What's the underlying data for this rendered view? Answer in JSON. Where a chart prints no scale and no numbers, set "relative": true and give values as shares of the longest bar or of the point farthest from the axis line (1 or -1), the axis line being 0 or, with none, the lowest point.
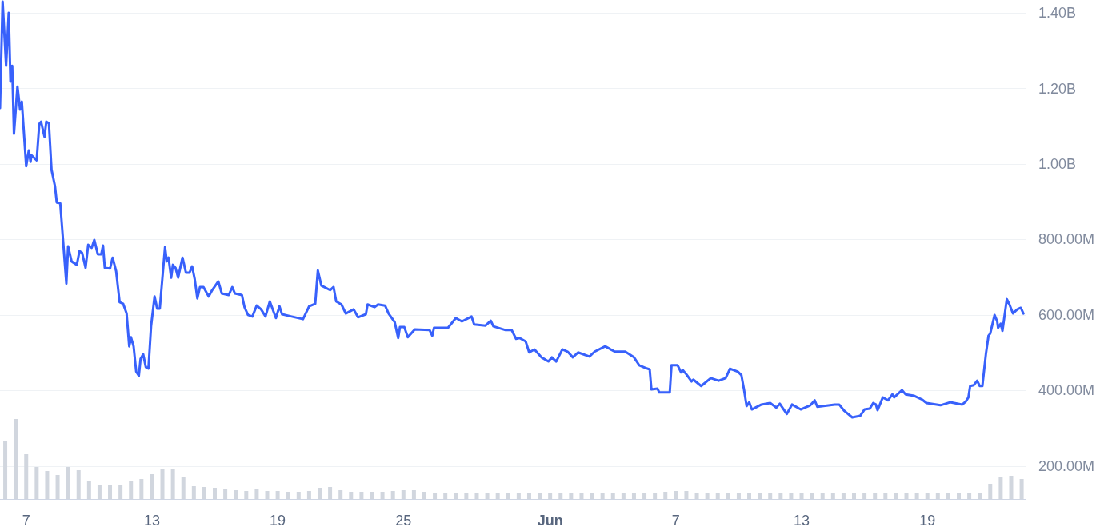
{
  "chart_data": [
    {
      "type": "line",
      "color": "#3861fb",
      "x": [
        "--05-05T18:00",
        "--05-05T21:00",
        "--05-06T01:00",
        "--05-06T04:00",
        "--05-06T06:00",
        "--05-06T08:00",
        "--05-06T10:00",
        "--05-06T14:00",
        "--05-06T17:00",
        "--05-06T19:00",
        "--05-07T00:00",
        "--05-07T03:00",
        "--05-07T05:00",
        "--05-07T06:00",
        "--05-07T12:00",
        "--05-07T15:00",
        "--05-07T17:00",
        "--05-07T21:00",
        "--05-07T23:00",
        "--05-08T02:00",
        "--05-08T05:00",
        "--05-08T09:00",
        "--05-08T11:00",
        "--05-08T15:00",
        "--05-08T22:00",
        "--05-09T00:00",
        "--05-09T04:00",
        "--05-09T10:00",
        "--05-09T13:00",
        "--05-09T16:00",
        "--05-09T20:00",
        "--05-09T23:00",
        "--05-10T03:00",
        "--05-10T06:00",
        "--05-10T10:00",
        "--05-10T14:00",
        "--05-10T16:00",
        "--05-10T18:00",
        "--05-11T00:00",
        "--05-11T03:00",
        "--05-11T07:00",
        "--05-11T11:00",
        "--05-11T15:00",
        "--05-11T19:00",
        "--05-11T22:00",
        "--05-12T00:00",
        "--05-12T03:00",
        "--05-12T06:00",
        "--05-12T09:00",
        "--05-12T11:00",
        "--05-12T14:00",
        "--05-12T17:00",
        "--05-12T20:00",
        "--05-12T23:00",
        "--05-13T03:00",
        "--05-13T06:00",
        "--05-13T09:00",
        "--05-13T15:00",
        "--05-13T17:00",
        "--05-13T19:00",
        "--05-13T22:00",
        "--05-14T00:00",
        "--05-14T03:00",
        "--05-14T06:00",
        "--05-14T11:00",
        "--05-14T15:00",
        "--05-14T19:00",
        "--05-14T22:00",
        "--05-15T01:00",
        "--05-15T04:00",
        "--05-15T07:00",
        "--05-15T11:00",
        "--05-15T17:00",
        "--05-15T21:00",
        "--05-16T04:00",
        "--05-16T08:00",
        "--05-16T16:00",
        "--05-16T20:00",
        "--05-16T23:00",
        "--05-17T07:00",
        "--05-17T10:00",
        "--05-17T14:00",
        "--05-17T19:00",
        "--05-18T00:00",
        "--05-18T05:00",
        "--05-18T10:00",
        "--05-18T15:00",
        "--05-18T18:00",
        "--05-18T22:00",
        "--05-19T02:00",
        "--05-19T05:00",
        "--05-19T16:00",
        "--05-20T05:00",
        "--05-20T12:00",
        "--05-20T19:00",
        "--05-20T22:00",
        "--05-21T02:00",
        "--05-21T12:00",
        "--05-21T16:00",
        "--05-21T19:00",
        "--05-22T01:00",
        "--05-22T06:00",
        "--05-22T15:00",
        "--05-22T20:00",
        "--05-23T05:00",
        "--05-23T07:00",
        "--05-23T15:00",
        "--05-23T19:00",
        "--05-24T03:00",
        "--05-24T07:00",
        "--05-24T14:00",
        "--05-24T18:00",
        "--05-24T20:00",
        "--05-25T01:00",
        "--05-25T05:00",
        "--05-25T13:00",
        "--05-26T06:00",
        "--05-26T09:00",
        "--05-26T11:00",
        "--05-27T03:00",
        "--05-27T12:00",
        "--05-27T19:00",
        "--05-28T06:00",
        "--05-28T09:00",
        "--05-28T22:00",
        "--05-29T04:00",
        "--05-29T07:00",
        "--05-29T21:00",
        "--05-30T04:00",
        "--05-30T09:00",
        "--05-30T13:00",
        "--05-30T20:00",
        "--05-31T00:00",
        "--05-31T06:00",
        "--05-31T14:00",
        "--05-31T22:00",
        "--06-01T02:00",
        "--06-01T07:00",
        "--06-01T14:00",
        "--06-01T20:00",
        "--06-02T02:00",
        "--06-02T08:00",
        "--06-02T21:00",
        "--06-03T03:00",
        "--06-03T15:00",
        "--06-04T02:00",
        "--06-04T14:00",
        "--06-05T00:00",
        "--06-05T06:00",
        "--06-05T13:00",
        "--06-05T18:00",
        "--06-05T20:00",
        "--06-06T03:00",
        "--06-06T05:00",
        "--06-06T17:00",
        "--06-06T19:00",
        "--06-07T02:00",
        "--06-07T06:00",
        "--06-07T08:00",
        "--06-07T12:00",
        "--06-07T18:00",
        "--06-07T20:00",
        "--06-08T05:00",
        "--06-08T16:00",
        "--06-09T01:00",
        "--06-09T09:00",
        "--06-09T14:00",
        "--06-09T23:00",
        "--06-10T03:00",
        "--06-10T06:00",
        "--06-10T09:00",
        "--06-10T12:00",
        "--06-10T15:00",
        "--06-11T02:00",
        "--06-11T12:00",
        "--06-11T19:00",
        "--06-11T23:00",
        "--06-12T07:00",
        "--06-12T13:00",
        "--06-12T23:00",
        "--06-13T10:00",
        "--06-13T15:00",
        "--06-13T18:00",
        "--06-14T14:00",
        "--06-14T19:00",
        "--06-15T01:00",
        "--06-15T10:00",
        "--06-15T19:00",
        "--06-16T00:00",
        "--06-16T06:00",
        "--06-16T10:00",
        "--06-16T13:00",
        "--06-16T15:00",
        "--06-16T21:00",
        "--06-17T03:00",
        "--06-17T08:00",
        "--06-17T10:00",
        "--06-17T19:00",
        "--06-17T23:00",
        "--06-18T09:00",
        "--06-18T18:00",
        "--06-18T23:00",
        "--06-19T15:00",
        "--06-20T02:00",
        "--06-20T16:00",
        "--06-20T20:00",
        "--06-20T23:00",
        "--06-21T01:00",
        "--06-21T05:00",
        "--06-21T09:00",
        "--06-21T12:00",
        "--06-21T15:00",
        "--06-21T19:00",
        "--06-21T22:00",
        "--06-22T00:00",
        "--06-22T05:00",
        "--06-22T08:00",
        "--06-22T09:00",
        "--06-22T12:00",
        "--06-22T14:00",
        "--06-22T19:00",
        "--06-22T22:00",
        "--06-23T02:00",
        "--06-23T07:00",
        "--06-23T11:00",
        "--06-23T14:00"
      ],
      "values": [
        1148000000,
        1430000000,
        1260000000,
        1400000000,
        1218000000,
        1260000000,
        1080000000,
        1205000000,
        1144000000,
        1165000000,
        994000000,
        1036000000,
        1006000000,
        1023000000,
        1010000000,
        1106000000,
        1112000000,
        1072000000,
        1112000000,
        1108000000,
        985000000,
        941000000,
        898000000,
        896000000,
        683000000,
        782000000,
        742000000,
        733000000,
        769000000,
        765000000,
        725000000,
        786000000,
        778000000,
        799000000,
        761000000,
        761000000,
        784000000,
        725000000,
        723000000,
        752000000,
        716000000,
        634000000,
        630000000,
        604000000,
        517000000,
        541000000,
        517000000,
        450000000,
        439000000,
        484000000,
        496000000,
        462000000,
        458000000,
        570000000,
        649000000,
        617000000,
        617000000,
        780000000,
        742000000,
        752000000,
        699000000,
        733000000,
        725000000,
        699000000,
        752000000,
        712000000,
        712000000,
        729000000,
        695000000,
        644000000,
        674000000,
        674000000,
        649000000,
        666000000,
        689000000,
        657000000,
        653000000,
        674000000,
        657000000,
        653000000,
        621000000,
        600000000,
        596000000,
        625000000,
        615000000,
        596000000,
        636000000,
        617000000,
        592000000,
        623000000,
        602000000,
        596000000,
        589000000,
        623000000,
        630000000,
        718000000,
        678000000,
        666000000,
        674000000,
        636000000,
        628000000,
        604000000,
        615000000,
        594000000,
        602000000,
        628000000,
        621000000,
        628000000,
        625000000,
        604000000,
        581000000,
        539000000,
        568000000,
        568000000,
        541000000,
        562000000,
        560000000,
        545000000,
        566000000,
        566000000,
        592000000,
        583000000,
        596000000,
        575000000,
        572000000,
        585000000,
        570000000,
        560000000,
        560000000,
        537000000,
        539000000,
        530000000,
        501000000,
        509000000,
        488000000,
        477000000,
        488000000,
        477000000,
        509000000,
        503000000,
        488000000,
        501000000,
        490000000,
        503000000,
        517000000,
        503000000,
        503000000,
        488000000,
        467000000,
        460000000,
        456000000,
        403000000,
        405000000,
        395000000,
        395000000,
        467000000,
        467000000,
        448000000,
        454000000,
        443000000,
        424000000,
        429000000,
        412000000,
        433000000,
        426000000,
        433000000,
        458000000,
        450000000,
        441000000,
        403000000,
        359000000,
        369000000,
        350000000,
        363000000,
        367000000,
        355000000,
        365000000,
        338000000,
        363000000,
        350000000,
        361000000,
        374000000,
        357000000,
        363000000,
        363000000,
        346000000,
        329000000,
        333000000,
        350000000,
        352000000,
        367000000,
        363000000,
        348000000,
        382000000,
        374000000,
        390000000,
        382000000,
        401000000,
        390000000,
        386000000,
        376000000,
        367000000,
        361000000,
        369000000,
        363000000,
        371000000,
        382000000,
        412000000,
        414000000,
        426000000,
        412000000,
        412000000,
        496000000,
        545000000,
        551000000,
        600000000,
        583000000,
        566000000,
        577000000,
        558000000,
        642000000,
        628000000,
        604000000,
        615000000,
        619000000,
        604000000
      ],
      "xlim": [
        "--05-05T18:00",
        "--06-23T16:30"
      ],
      "xticks": [
        {
          "value": "--05-07",
          "label": "7"
        },
        {
          "value": "--05-13",
          "label": "13"
        },
        {
          "value": "--05-19",
          "label": "19"
        },
        {
          "value": "--05-25",
          "label": "25"
        },
        {
          "value": "--06-01",
          "label": "Jun"
        },
        {
          "value": "--06-07",
          "label": "7"
        },
        {
          "value": "--06-13",
          "label": "13"
        },
        {
          "value": "--06-19",
          "label": "19"
        }
      ],
      "ylim": [
        113000000,
        1434000000
      ],
      "yticks": [
        {
          "value": 200000000,
          "label": "200.00M"
        },
        {
          "value": 400000000,
          "label": "400.00M"
        },
        {
          "value": 600000000,
          "label": "600.00M"
        },
        {
          "value": 800000000,
          "label": "800.00M"
        },
        {
          "value": 1000000000,
          "label": "1.00B"
        },
        {
          "value": 1200000000,
          "label": "1.20B"
        },
        {
          "value": 1400000000,
          "label": "1.40B"
        }
      ],
      "grid": "y"
    },
    {
      "type": "bar",
      "relative": true,
      "color": "#d1d6de",
      "tick_labels": false,
      "x": [
        "--05-06T00:00",
        "--05-06T12:00",
        "--05-07T00:00",
        "--05-07T12:00",
        "--05-08T00:00",
        "--05-08T12:00",
        "--05-09T00:00",
        "--05-09T12:00",
        "--05-10T00:00",
        "--05-10T12:00",
        "--05-11T00:00",
        "--05-11T12:00",
        "--05-12T00:00",
        "--05-12T12:00",
        "--05-13T00:00",
        "--05-13T12:00",
        "--05-14T00:00",
        "--05-14T12:00",
        "--05-15T00:00",
        "--05-15T12:00",
        "--05-16T00:00",
        "--05-16T12:00",
        "--05-17T00:00",
        "--05-17T12:00",
        "--05-18T00:00",
        "--05-18T12:00",
        "--05-19T00:00",
        "--05-19T12:00",
        "--05-20T00:00",
        "--05-20T12:00",
        "--05-21T00:00",
        "--05-21T12:00",
        "--05-22T00:00",
        "--05-22T12:00",
        "--05-23T00:00",
        "--05-23T12:00",
        "--05-24T00:00",
        "--05-24T12:00",
        "--05-25T00:00",
        "--05-25T12:00",
        "--05-26T00:00",
        "--05-26T12:00",
        "--05-27T00:00",
        "--05-27T12:00",
        "--05-28T00:00",
        "--05-28T12:00",
        "--05-29T00:00",
        "--05-29T12:00",
        "--05-30T00:00",
        "--05-30T12:00",
        "--05-31T00:00",
        "--05-31T12:00",
        "--06-01T00:00",
        "--06-01T12:00",
        "--06-02T00:00",
        "--06-02T12:00",
        "--06-03T00:00",
        "--06-03T12:00",
        "--06-04T00:00",
        "--06-04T12:00",
        "--06-05T00:00",
        "--06-05T12:00",
        "--06-06T00:00",
        "--06-06T12:00",
        "--06-07T00:00",
        "--06-07T12:00",
        "--06-08T00:00",
        "--06-08T12:00",
        "--06-09T00:00",
        "--06-09T12:00",
        "--06-10T00:00",
        "--06-10T12:00",
        "--06-11T00:00",
        "--06-11T12:00",
        "--06-12T00:00",
        "--06-12T12:00",
        "--06-13T00:00",
        "--06-13T12:00",
        "--06-14T00:00",
        "--06-14T12:00",
        "--06-15T00:00",
        "--06-15T12:00",
        "--06-16T00:00",
        "--06-16T12:00",
        "--06-17T00:00",
        "--06-17T12:00",
        "--06-18T00:00",
        "--06-18T12:00",
        "--06-19T00:00",
        "--06-19T12:00",
        "--06-20T00:00",
        "--06-20T12:00",
        "--06-21T00:00",
        "--06-21T12:00",
        "--06-22T00:00",
        "--06-22T12:00",
        "--06-23T00:00",
        "--06-23T12:00"
      ],
      "values": [
        0.72,
        1.0,
        0.56,
        0.4,
        0.35,
        0.3,
        0.4,
        0.36,
        0.22,
        0.18,
        0.17,
        0.18,
        0.22,
        0.25,
        0.31,
        0.37,
        0.38,
        0.27,
        0.16,
        0.15,
        0.14,
        0.12,
        0.11,
        0.1,
        0.13,
        0.1,
        0.1,
        0.09,
        0.09,
        0.1,
        0.14,
        0.15,
        0.11,
        0.09,
        0.09,
        0.09,
        0.09,
        0.1,
        0.11,
        0.11,
        0.09,
        0.08,
        0.08,
        0.08,
        0.08,
        0.08,
        0.08,
        0.08,
        0.08,
        0.08,
        0.07,
        0.07,
        0.07,
        0.07,
        0.07,
        0.07,
        0.07,
        0.07,
        0.07,
        0.07,
        0.07,
        0.08,
        0.08,
        0.09,
        0.1,
        0.1,
        0.08,
        0.07,
        0.07,
        0.07,
        0.07,
        0.08,
        0.08,
        0.08,
        0.07,
        0.07,
        0.07,
        0.07,
        0.07,
        0.07,
        0.07,
        0.07,
        0.07,
        0.07,
        0.07,
        0.07,
        0.07,
        0.07,
        0.07,
        0.07,
        0.07,
        0.07,
        0.07,
        0.08,
        0.19,
        0.27,
        0.29,
        0.25
      ],
      "xlim": [
        "--05-05T18:00",
        "--06-23T16:30"
      ]
    }
  ]
}
